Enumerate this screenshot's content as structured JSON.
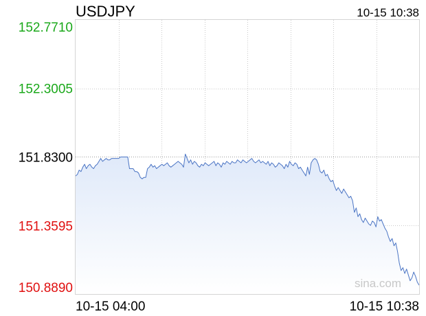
{
  "header": {
    "symbol": "USDJPY",
    "timestamp": "10-15 10:38"
  },
  "watermark": "sina.com",
  "colors": {
    "up": "#1aa81a",
    "down": "#e01010",
    "neutral": "#000000",
    "line": "#4a74c4",
    "area_top": "#dfe9f9",
    "area_bottom": "#ffffff"
  },
  "chart_data": {
    "type": "area",
    "title": "USDJPY",
    "xlabel": "",
    "ylabel": "",
    "reference_price": 151.83,
    "ylim": [
      150.889,
      152.771
    ],
    "y_ticks": [
      {
        "value": 152.771,
        "label": "152.7710",
        "tone": "up"
      },
      {
        "value": 152.3005,
        "label": "152.3005",
        "tone": "up"
      },
      {
        "value": 151.83,
        "label": "151.8300",
        "tone": "neutral"
      },
      {
        "value": 151.3595,
        "label": "151.3595",
        "tone": "down"
      },
      {
        "value": 150.889,
        "label": "150.8890",
        "tone": "down"
      }
    ],
    "x_ticks": [
      "10-15 04:00",
      "10-15 10:38"
    ],
    "grid": true,
    "series": [
      {
        "name": "USDJPY",
        "values": [
          151.7,
          151.71,
          151.74,
          151.73,
          151.76,
          151.78,
          151.75,
          151.77,
          151.78,
          151.76,
          151.75,
          151.77,
          151.78,
          151.8,
          151.82,
          151.8,
          151.81,
          151.82,
          151.81,
          151.81,
          151.82,
          151.82,
          151.82,
          151.82,
          151.82,
          151.83,
          151.83,
          151.83,
          151.83,
          151.83,
          151.75,
          151.75,
          151.75,
          151.73,
          151.73,
          151.72,
          151.69,
          151.68,
          151.69,
          151.69,
          151.75,
          151.76,
          151.78,
          151.76,
          151.77,
          151.75,
          151.76,
          151.77,
          151.78,
          151.77,
          151.78,
          151.79,
          151.77,
          151.76,
          151.77,
          151.78,
          151.79,
          151.8,
          151.79,
          151.78,
          151.76,
          151.85,
          151.82,
          151.79,
          151.81,
          151.78,
          151.8,
          151.79,
          151.77,
          151.76,
          151.78,
          151.77,
          151.79,
          151.78,
          151.77,
          151.78,
          151.79,
          151.8,
          151.77,
          151.79,
          151.78,
          151.76,
          151.79,
          151.78,
          151.8,
          151.79,
          151.78,
          151.8,
          151.79,
          151.79,
          151.81,
          151.8,
          151.79,
          151.81,
          151.8,
          151.79,
          151.8,
          151.81,
          151.82,
          151.8,
          151.79,
          151.8,
          151.81,
          151.79,
          151.8,
          151.79,
          151.78,
          151.8,
          151.77,
          151.79,
          151.78,
          151.76,
          151.77,
          151.79,
          151.78,
          151.77,
          151.75,
          151.78,
          151.76,
          151.8,
          151.78,
          151.77,
          151.79,
          151.78,
          151.75,
          151.76,
          151.74,
          151.72,
          151.7,
          151.76,
          151.71,
          151.79,
          151.81,
          151.82,
          151.81,
          151.78,
          151.73,
          151.72,
          151.74,
          151.7,
          151.71,
          151.68,
          151.66,
          151.67,
          151.63,
          151.6,
          151.62,
          151.6,
          151.58,
          151.61,
          151.59,
          151.57,
          151.55,
          151.56,
          151.53,
          151.45,
          151.48,
          151.42,
          151.44,
          151.4,
          151.38,
          151.41,
          151.39,
          151.37,
          151.36,
          151.39,
          151.38,
          151.35,
          151.42,
          151.39,
          151.4,
          151.37,
          151.34,
          151.32,
          151.28,
          151.25,
          151.27,
          151.22,
          151.24,
          151.18,
          151.1,
          151.05,
          151.07,
          151.03,
          151.06,
          151.02,
          150.98,
          151.0,
          151.04,
          151.01,
          150.97,
          150.95
        ]
      }
    ]
  }
}
